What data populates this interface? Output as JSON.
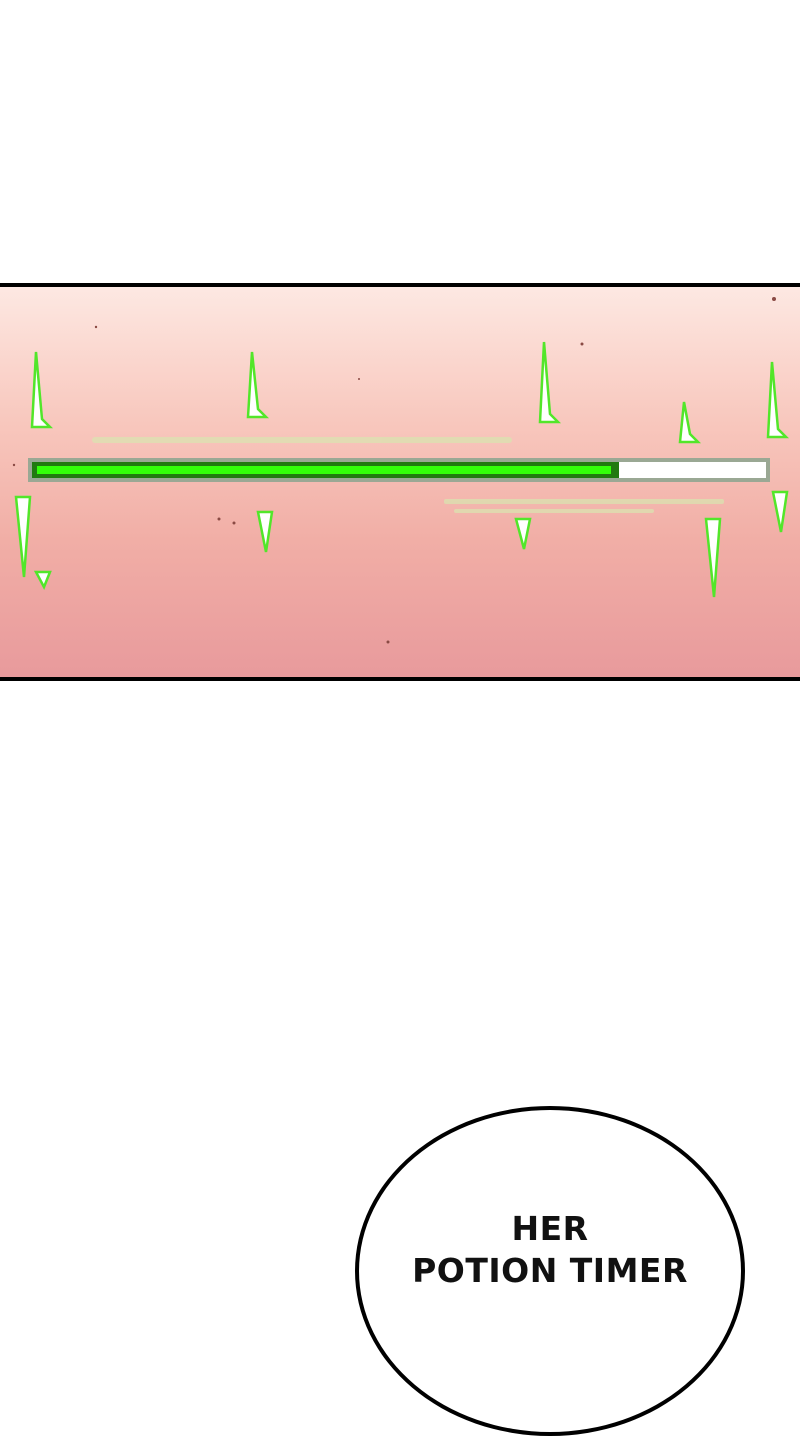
{
  "panel": {
    "progress_bar": {
      "fill_fraction": 0.8,
      "fill_color": "#33ff0a",
      "border_color": "#217a10",
      "empty_color": "#ffffff"
    }
  },
  "speech_bubble": {
    "lines": [
      "HER",
      "POTION TIMER"
    ]
  }
}
